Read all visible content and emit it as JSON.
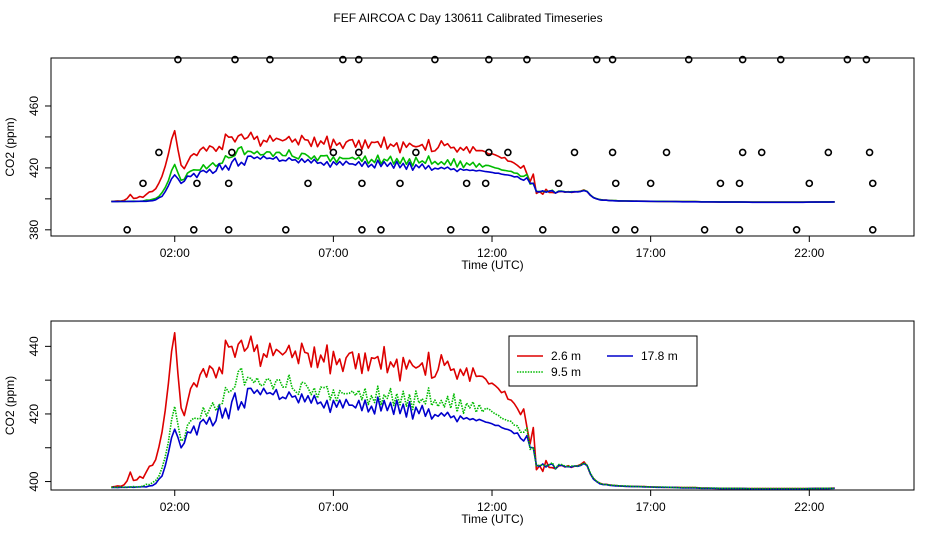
{
  "title": "FEF AIRCOA C  Day 130611  Calibrated Timeseries",
  "chart_data": [
    {
      "type": "line",
      "panel": "top",
      "xlabel": "Time (UTC)",
      "ylabel": "CO2 (ppm)",
      "xlim": [
        -1.9,
        25.3
      ],
      "ylim": [
        376,
        491
      ],
      "x_ticks": [
        2,
        7,
        12,
        17,
        22
      ],
      "x_tick_labels": [
        "02:00",
        "07:00",
        "12:00",
        "17:00",
        "22:00"
      ],
      "y_ticks": [
        380,
        420,
        460
      ],
      "y_tick_labels": [
        "380",
        "420",
        "460"
      ],
      "y_minor_ticks": [
        400,
        440
      ],
      "series_keys": [
        "m2_6",
        "m9_5",
        "m17_8"
      ],
      "series_colors": [
        "#dd0000",
        "#00bb00",
        "#0000cc"
      ],
      "draw_order": [
        "m2_6",
        "m9_5",
        "m17_8"
      ],
      "markers": [
        {
          "x": 2.1,
          "y": 490
        },
        {
          "x": 3.9,
          "y": 490
        },
        {
          "x": 5.0,
          "y": 490
        },
        {
          "x": 7.3,
          "y": 490
        },
        {
          "x": 7.8,
          "y": 490
        },
        {
          "x": 10.2,
          "y": 490
        },
        {
          "x": 11.9,
          "y": 490
        },
        {
          "x": 13.1,
          "y": 490
        },
        {
          "x": 15.3,
          "y": 490
        },
        {
          "x": 15.8,
          "y": 490
        },
        {
          "x": 18.2,
          "y": 490
        },
        {
          "x": 19.9,
          "y": 490
        },
        {
          "x": 21.1,
          "y": 490
        },
        {
          "x": 23.2,
          "y": 490
        },
        {
          "x": 23.8,
          "y": 490
        },
        {
          "x": 1.5,
          "y": 430
        },
        {
          "x": 3.8,
          "y": 430
        },
        {
          "x": 7.0,
          "y": 430
        },
        {
          "x": 7.8,
          "y": 430
        },
        {
          "x": 9.6,
          "y": 430
        },
        {
          "x": 11.9,
          "y": 430
        },
        {
          "x": 12.5,
          "y": 430
        },
        {
          "x": 14.6,
          "y": 430
        },
        {
          "x": 15.8,
          "y": 430
        },
        {
          "x": 17.5,
          "y": 430
        },
        {
          "x": 19.9,
          "y": 430
        },
        {
          "x": 20.5,
          "y": 430
        },
        {
          "x": 22.6,
          "y": 430
        },
        {
          "x": 23.9,
          "y": 430
        },
        {
          "x": 1.0,
          "y": 410
        },
        {
          "x": 2.7,
          "y": 410
        },
        {
          "x": 3.7,
          "y": 410
        },
        {
          "x": 6.2,
          "y": 410
        },
        {
          "x": 7.9,
          "y": 410
        },
        {
          "x": 9.1,
          "y": 410
        },
        {
          "x": 11.2,
          "y": 410
        },
        {
          "x": 11.8,
          "y": 410
        },
        {
          "x": 14.1,
          "y": 410
        },
        {
          "x": 15.9,
          "y": 410
        },
        {
          "x": 17.0,
          "y": 410
        },
        {
          "x": 19.2,
          "y": 410
        },
        {
          "x": 19.8,
          "y": 410
        },
        {
          "x": 22.0,
          "y": 410
        },
        {
          "x": 24.0,
          "y": 410
        },
        {
          "x": 0.5,
          "y": 380
        },
        {
          "x": 2.6,
          "y": 380
        },
        {
          "x": 3.7,
          "y": 380
        },
        {
          "x": 5.5,
          "y": 380
        },
        {
          "x": 7.9,
          "y": 380
        },
        {
          "x": 8.5,
          "y": 380
        },
        {
          "x": 10.7,
          "y": 380
        },
        {
          "x": 11.8,
          "y": 380
        },
        {
          "x": 13.6,
          "y": 380
        },
        {
          "x": 15.9,
          "y": 380
        },
        {
          "x": 16.5,
          "y": 380
        },
        {
          "x": 18.7,
          "y": 380
        },
        {
          "x": 19.8,
          "y": 380
        },
        {
          "x": 21.6,
          "y": 380
        },
        {
          "x": 24.0,
          "y": 380
        }
      ]
    },
    {
      "type": "line",
      "panel": "bottom",
      "xlabel": "Time (UTC)",
      "ylabel": "CO2 (ppm)",
      "xlim": [
        -1.9,
        25.3
      ],
      "ylim": [
        397.5,
        447.5
      ],
      "x_ticks": [
        2,
        7,
        12,
        17,
        22
      ],
      "x_tick_labels": [
        "02:00",
        "07:00",
        "12:00",
        "17:00",
        "22:00"
      ],
      "y_ticks": [
        400,
        420,
        440
      ],
      "y_tick_labels": [
        "400",
        "420",
        "440"
      ],
      "y_minor_ticks": [
        410,
        430
      ],
      "series_keys": [
        "m2_6",
        "m9_5",
        "m17_8"
      ],
      "series_colors": [
        "#dd0000",
        "#00bb00",
        "#0000cc"
      ],
      "draw_order": [
        "m2_6",
        "m17_8",
        "m9_5"
      ],
      "legend": {
        "position": "top-right",
        "entries": [
          {
            "label": "2.6 m",
            "key": "m2_6",
            "color": "#dd0000",
            "style": "solid"
          },
          {
            "label": "17.8 m",
            "key": "m17_8",
            "color": "#0000cc",
            "style": "solid"
          },
          {
            "label": "9.5 m",
            "key": "m9_5",
            "color": "#00bb00",
            "style": "dotted"
          }
        ]
      }
    }
  ],
  "series_data": {
    "x": [
      0.0,
      0.1,
      0.2,
      0.3,
      0.4,
      0.5,
      0.6,
      0.7,
      0.8,
      0.9,
      1.0,
      1.1,
      1.2,
      1.3,
      1.4,
      1.5,
      1.6,
      1.7,
      1.8,
      1.9,
      2.0,
      2.1,
      2.2,
      2.3,
      2.4,
      2.5,
      2.6,
      2.7,
      2.8,
      2.9,
      3.0,
      3.1,
      3.2,
      3.3,
      3.4,
      3.5,
      3.6,
      3.7,
      3.8,
      3.9,
      4.0,
      4.1,
      4.2,
      4.3,
      4.4,
      4.5,
      4.6,
      4.7,
      4.8,
      4.9,
      5.0,
      5.1,
      5.2,
      5.3,
      5.4,
      5.5,
      5.6,
      5.7,
      5.8,
      5.9,
      6.0,
      6.1,
      6.2,
      6.3,
      6.4,
      6.5,
      6.6,
      6.7,
      6.8,
      6.9,
      7.0,
      7.1,
      7.2,
      7.3,
      7.4,
      7.5,
      7.6,
      7.7,
      7.8,
      7.9,
      8.0,
      8.1,
      8.2,
      8.3,
      8.4,
      8.5,
      8.6,
      8.7,
      8.8,
      8.9,
      9.0,
      9.1,
      9.2,
      9.3,
      9.4,
      9.5,
      9.6,
      9.7,
      9.8,
      9.9,
      10.0,
      10.1,
      10.2,
      10.3,
      10.4,
      10.5,
      10.6,
      10.7,
      10.8,
      10.9,
      11.0,
      11.1,
      11.2,
      11.3,
      11.4,
      11.5,
      11.6,
      11.7,
      11.8,
      11.9,
      12.0,
      12.1,
      12.2,
      12.3,
      12.4,
      12.5,
      12.6,
      12.7,
      12.8,
      12.9,
      13.0,
      13.1,
      13.2,
      13.3,
      13.4,
      13.5,
      13.6,
      13.7,
      13.8,
      13.9,
      14.0,
      14.1,
      14.2,
      14.3,
      14.4,
      14.5,
      14.6,
      14.7,
      14.8,
      14.9,
      15.0,
      15.1,
      15.2,
      15.3,
      15.4,
      15.5,
      15.6,
      15.7,
      15.8,
      15.9,
      16.0,
      16.2,
      16.4,
      16.6,
      16.8,
      17.0,
      17.2,
      17.4,
      17.6,
      17.8,
      18.0,
      18.2,
      18.4,
      18.6,
      18.8,
      19.0,
      19.2,
      19.4,
      19.6,
      19.8,
      20.0,
      20.2,
      20.4,
      20.6,
      20.8,
      21.0,
      21.2,
      21.4,
      21.6,
      21.8,
      22.0,
      22.2,
      22.4,
      22.6,
      22.8,
      23.0,
      23.2,
      23.4,
      23.6,
      23.8,
      24.0
    ],
    "m2_6": [
      398.4,
      398.5,
      398.7,
      398.6,
      399.0,
      400.2,
      402.8,
      400.3,
      400.5,
      401.5,
      401.0,
      402.8,
      404.5,
      404.8,
      406.5,
      410.2,
      414.6,
      421.0,
      429.0,
      438.5,
      444.0,
      432.0,
      421.8,
      419.5,
      423.5,
      427.5,
      429.2,
      428.0,
      431.6,
      433.4,
      430.9,
      434.2,
      433.3,
      430.7,
      433.8,
      431.9,
      441.8,
      439.8,
      440.0,
      436.8,
      440.6,
      441.8,
      438.6,
      439.7,
      443.0,
      438.5,
      440.4,
      434.1,
      437.8,
      436.8,
      440.9,
      437.3,
      439.1,
      438.4,
      437.5,
      438.4,
      440.3,
      436.7,
      438.6,
      434.9,
      440.9,
      438.2,
      437.9,
      433.9,
      439.8,
      433.7,
      437.4,
      435.4,
      440.4,
      431.9,
      438.5,
      434.6,
      436.3,
      432.6,
      436.6,
      437.9,
      438.3,
      433.4,
      437.8,
      432.0,
      438.0,
      432.8,
      436.6,
      436.4,
      437.0,
      433.3,
      439.9,
      432.2,
      435.4,
      433.9,
      436.2,
      429.8,
      436.7,
      433.3,
      435.9,
      434.3,
      433.6,
      434.1,
      435.1,
      431.5,
      438.2,
      430.6,
      431.0,
      433.1,
      437.5,
      434.4,
      435.6,
      432.9,
      433.3,
      430.3,
      433.2,
      431.4,
      433.6,
      429.7,
      433.6,
      431.1,
      431.2,
      431.1,
      430.3,
      428.9,
      429.1,
      428.4,
      427.5,
      426.3,
      426.7,
      424.4,
      424.1,
      423.1,
      421.6,
      419.8,
      421.5,
      416.2,
      411.1,
      416.0,
      403.5,
      404.7,
      403.0,
      406.2,
      404.2,
      404.1,
      403.8,
      404.6,
      404.8,
      404.3,
      404.7,
      404.2,
      404.5,
      404.7,
      405.1,
      405.8,
      404.6,
      402.2,
      400.9,
      400.0,
      399.5,
      399.2,
      399.2,
      399.0,
      398.9,
      398.8,
      398.7,
      398.6,
      398.6,
      398.5,
      398.5,
      398.4,
      398.4,
      398.3,
      398.3,
      398.3,
      398.2,
      398.2,
      398.2,
      398.1,
      398.1,
      398.0,
      398.0,
      398.0,
      398.0,
      398.0,
      397.9,
      397.9,
      397.9,
      397.9,
      397.9,
      397.9,
      397.9,
      397.9,
      397.9,
      397.9,
      397.9,
      398.0,
      398.0,
      398.0,
      398.1
    ],
    "m9_5": [
      398.3,
      398.3,
      398.3,
      398.4,
      398.3,
      398.4,
      398.4,
      398.5,
      398.4,
      398.5,
      398.6,
      399.2,
      399.1,
      399.7,
      400.3,
      401.6,
      404.0,
      407.3,
      411.7,
      418.3,
      422.2,
      416.9,
      412.0,
      412.7,
      416.6,
      417.9,
      418.8,
      418.6,
      418.6,
      422.0,
      419.4,
      421.4,
      423.3,
      421.0,
      422.7,
      423.1,
      427.8,
      426.5,
      427.0,
      428.1,
      432.5,
      433.6,
      428.6,
      430.8,
      430.5,
      429.2,
      430.7,
      428.4,
      428.6,
      430.4,
      430.2,
      427.4,
      430.0,
      430.1,
      428.0,
      427.9,
      431.6,
      427.7,
      426.7,
      425.8,
      429.4,
      429.1,
      427.7,
      425.7,
      427.7,
      424.7,
      427.9,
      427.8,
      428.1,
      424.2,
      427.1,
      423.6,
      426.9,
      426.0,
      426.0,
      426.1,
      426.8,
      425.5,
      427.0,
      424.2,
      427.6,
      422.8,
      425.4,
      423.4,
      428.2,
      422.6,
      425.6,
      424.6,
      427.5,
      422.5,
      426.0,
      422.7,
      426.7,
      422.3,
      425.8,
      421.3,
      426.8,
      423.2,
      424.5,
      423.0,
      427.7,
      422.5,
      424.1,
      422.2,
      424.0,
      422.1,
      425.2,
      421.7,
      425.9,
      420.6,
      424.4,
      420.2,
      423.2,
      421.8,
      423.6,
      420.5,
      422.8,
      420.6,
      421.7,
      421.5,
      420.7,
      420.0,
      419.6,
      418.7,
      418.4,
      418.0,
      417.8,
      416.7,
      416.5,
      414.6,
      414.6,
      415.8,
      409.5,
      410.1,
      404.7,
      404.8,
      404.9,
      404.7,
      404.9,
      405.6,
      403.8,
      405.0,
      405.0,
      404.6,
      404.4,
      404.6,
      404.6,
      404.6,
      404.9,
      405.5,
      404.8,
      402.5,
      400.9,
      400.1,
      399.5,
      399.2,
      399.1,
      399.0,
      398.9,
      398.9,
      398.7,
      398.7,
      398.6,
      398.5,
      398.5,
      398.4,
      398.4,
      398.4,
      398.3,
      398.2,
      398.2,
      398.2,
      398.2,
      398.1,
      398.1,
      398.1,
      398.0,
      398.0,
      398.0,
      398.0,
      397.9,
      397.9,
      397.9,
      397.9,
      397.9,
      397.9,
      397.9,
      397.9,
      397.9,
      397.9,
      397.9,
      397.9,
      398.0,
      398.0,
      398.0
    ],
    "m17_8": [
      398.2,
      398.3,
      398.2,
      398.3,
      398.3,
      398.3,
      398.4,
      398.3,
      398.4,
      398.4,
      398.5,
      398.4,
      398.7,
      398.8,
      399.4,
      400.7,
      401.6,
      404.6,
      408.5,
      413.0,
      415.5,
      413.1,
      410.0,
      411.4,
      414.7,
      414.4,
      416.4,
      413.8,
      417.5,
      418.4,
      417.0,
      419.0,
      416.5,
      418.0,
      422.7,
      418.8,
      421.7,
      418.6,
      423.6,
      426.2,
      421.2,
      423.6,
      421.8,
      427.5,
      427.6,
      426.1,
      427.1,
      425.7,
      427.6,
      426.0,
      426.3,
      425.7,
      427.2,
      424.3,
      425.0,
      424.5,
      426.5,
      425.0,
      425.3,
      423.3,
      425.9,
      423.6,
      425.4,
      423.2,
      425.5,
      423.0,
      423.5,
      421.8,
      424.0,
      420.5,
      424.0,
      422.0,
      424.1,
      421.8,
      424.3,
      422.6,
      422.6,
      421.8,
      424.0,
      421.0,
      424.1,
      420.6,
      422.3,
      420.0,
      425.0,
      420.9,
      424.0,
      421.0,
      423.4,
      419.9,
      424.1,
      420.1,
      422.9,
      419.1,
      423.6,
      418.5,
      422.0,
      420.1,
      422.5,
      419.3,
      421.5,
      418.5,
      419.8,
      419.3,
      420.3,
      419.4,
      420.5,
      418.9,
      419.4,
      417.7,
      419.4,
      418.5,
      418.9,
      418.3,
      418.6,
      418.0,
      418.4,
      418.0,
      417.6,
      417.4,
      417.1,
      416.6,
      416.6,
      416.0,
      415.6,
      415.4,
      415.0,
      414.2,
      414.4,
      412.8,
      412.0,
      413.6,
      410.1,
      410.0,
      404.8,
      404.5,
      405.2,
      404.3,
      405.0,
      405.2,
      403.7,
      404.8,
      404.8,
      404.4,
      404.4,
      404.3,
      404.6,
      404.5,
      404.8,
      405.3,
      404.7,
      402.3,
      400.7,
      400.0,
      399.3,
      399.1,
      399.1,
      398.9,
      398.8,
      398.7,
      398.7,
      398.6,
      398.5,
      398.5,
      398.4,
      398.4,
      398.3,
      398.3,
      398.3,
      398.2,
      398.1,
      398.1,
      398.1,
      398.0,
      398.0,
      398.0,
      397.9,
      397.9,
      397.9,
      397.9,
      397.9,
      397.8,
      397.8,
      397.8,
      397.8,
      397.8,
      397.8,
      397.8,
      397.8,
      397.8,
      397.9,
      397.9,
      397.9,
      397.9,
      398.0
    ]
  }
}
